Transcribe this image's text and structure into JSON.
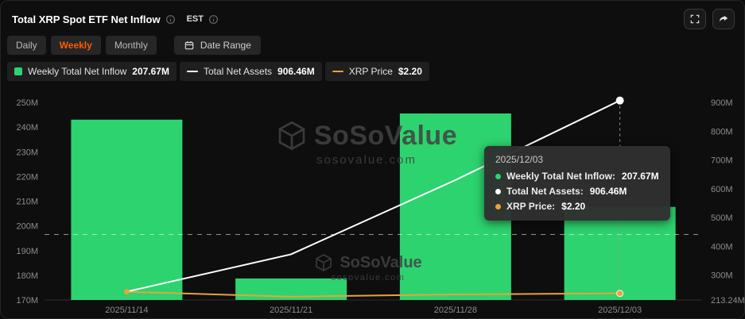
{
  "header": {
    "title": "Total XRP Spot ETF Net Inflow",
    "timezone_label": "EST"
  },
  "controls": {
    "tabs": [
      {
        "label": "Daily",
        "active": false
      },
      {
        "label": "Weekly",
        "active": true
      },
      {
        "label": "Monthly",
        "active": false
      }
    ],
    "date_range_label": "Date Range"
  },
  "legend": [
    {
      "label": "Weekly Total Net Inflow",
      "value": "207.67M",
      "color": "#2DD36F"
    },
    {
      "label": "Total Net Assets",
      "value": "906.46M",
      "color": "#FFFFFF"
    },
    {
      "label": "XRP Price",
      "value": "$2.20",
      "color": "#E9A23C"
    }
  ],
  "tooltip": {
    "title": "2025/12/03",
    "rows": [
      {
        "label": "Weekly Total Net Inflow:",
        "value": "207.67M",
        "color": "#2DD36F"
      },
      {
        "label": "Total Net Assets:",
        "value": "906.46M",
        "color": "#FFFFFF"
      },
      {
        "label": "XRP Price:",
        "value": "$2.20",
        "color": "#E9A23C"
      }
    ]
  },
  "watermark": {
    "brand": "SoSoValue",
    "domain": "sosovalue.com"
  },
  "chart_data": {
    "type": "bar",
    "title": "Total XRP Spot ETF Net Inflow",
    "categories": [
      "2025/11/14",
      "2025/11/21",
      "2025/11/28",
      "2025/12/03"
    ],
    "series": [
      {
        "name": "Weekly Total Net Inflow",
        "type": "bar",
        "axis": "left",
        "color": "#2DD36F",
        "unit": "M USD",
        "values": [
          243,
          178.7,
          245.5,
          207.67
        ]
      },
      {
        "name": "Total Net Assets",
        "type": "line",
        "axis": "right",
        "color": "#FFFFFF",
        "unit": "M USD",
        "values": [
          242,
          372,
          630,
          906.46
        ]
      },
      {
        "name": "XRP Price",
        "type": "line",
        "axis": "price",
        "color": "#E9A23C",
        "unit": "USD",
        "values": [
          2.25,
          2.1,
          2.17,
          2.2
        ]
      }
    ],
    "left_axis": {
      "min": 170,
      "max": 250,
      "ticks": [
        {
          "label": "250M",
          "value": 250
        },
        {
          "label": "240M",
          "value": 240
        },
        {
          "label": "230M",
          "value": 230
        },
        {
          "label": "220M",
          "value": 220
        },
        {
          "label": "210M",
          "value": 210
        },
        {
          "label": "200M",
          "value": 200
        },
        {
          "label": "190M",
          "value": 190
        },
        {
          "label": "180M",
          "value": 180
        },
        {
          "label": "170M",
          "value": 170
        }
      ]
    },
    "right_axis": {
      "min": 213.24,
      "max": 900,
      "ticks": [
        {
          "label": "900M",
          "value": 900
        },
        {
          "label": "800M",
          "value": 800
        },
        {
          "label": "700M",
          "value": 700
        },
        {
          "label": "600M",
          "value": 600
        },
        {
          "label": "500M",
          "value": 500
        },
        {
          "label": "400M",
          "value": 400
        },
        {
          "label": "300M",
          "value": 300
        },
        {
          "label": "213.24M",
          "value": 213.24
        }
      ]
    },
    "price_axis": {
      "min": 2,
      "max": 8,
      "visible": false
    },
    "reference_line": {
      "axis": "left",
      "value": 196.5,
      "style": "dashed"
    },
    "highlight": {
      "category_index": 3,
      "vertical_guide": true
    },
    "grid": false,
    "legend_position": "top-left"
  }
}
